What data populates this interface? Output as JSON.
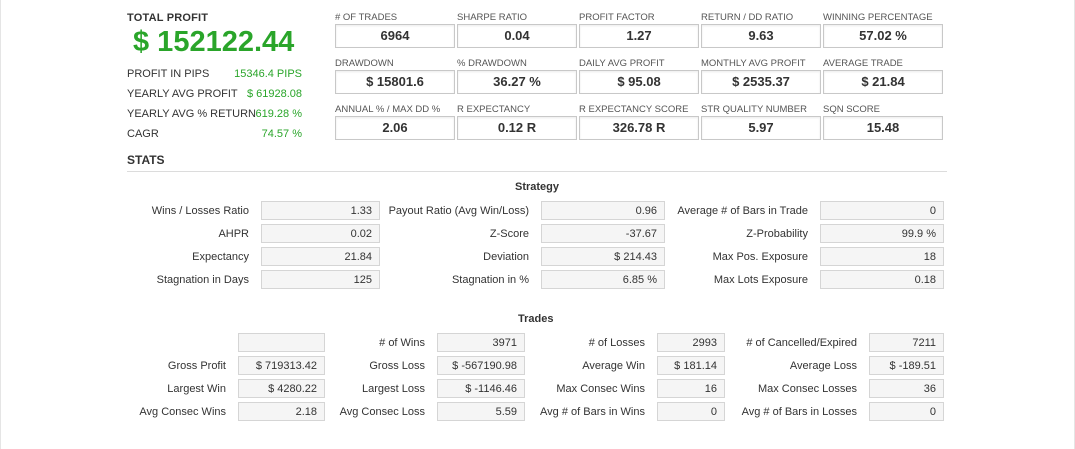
{
  "summary": {
    "total_profit_label": "TOTAL PROFIT",
    "total_profit_value": "$ 152122.44",
    "rows": [
      {
        "label": "PROFIT IN PIPS",
        "value": "15346.4 PIPS"
      },
      {
        "label": "YEARLY AVG PROFIT",
        "value": "$ 61928.08"
      },
      {
        "label": "YEARLY AVG % RETURN",
        "value": "619.28 %"
      },
      {
        "label": "CAGR",
        "value": "74.57 %"
      }
    ]
  },
  "metrics": [
    [
      {
        "label": "# OF TRADES",
        "value": "6964"
      },
      {
        "label": "SHARPE RATIO",
        "value": "0.04"
      },
      {
        "label": "PROFIT FACTOR",
        "value": "1.27"
      },
      {
        "label": "RETURN / DD RATIO",
        "value": "9.63"
      },
      {
        "label": "WINNING PERCENTAGE",
        "value": "57.02 %"
      }
    ],
    [
      {
        "label": "DRAWDOWN",
        "value": "$ 15801.6"
      },
      {
        "label": "% DRAWDOWN",
        "value": "36.27 %"
      },
      {
        "label": "DAILY AVG PROFIT",
        "value": "$ 95.08"
      },
      {
        "label": "MONTHLY AVG PROFIT",
        "value": "$ 2535.37"
      },
      {
        "label": "AVERAGE TRADE",
        "value": "$ 21.84"
      }
    ],
    [
      {
        "label": "ANNUAL % / MAX DD %",
        "value": "2.06"
      },
      {
        "label": "R EXPECTANCY",
        "value": "0.12 R"
      },
      {
        "label": "R EXPECTANCY SCORE",
        "value": "326.78 R"
      },
      {
        "label": "STR QUALITY NUMBER",
        "value": "5.97"
      },
      {
        "label": "SQN SCORE",
        "value": "15.48"
      }
    ]
  ],
  "stats_title": "STATS",
  "strategy": {
    "title": "Strategy",
    "rows": [
      [
        {
          "label": "Wins / Losses Ratio",
          "value": "1.33"
        },
        {
          "label": "Payout Ratio (Avg Win/Loss)",
          "value": "0.96"
        },
        {
          "label": "Average # of Bars in Trade",
          "value": "0"
        }
      ],
      [
        {
          "label": "AHPR",
          "value": "0.02"
        },
        {
          "label": "Z-Score",
          "value": "-37.67"
        },
        {
          "label": "Z-Probability",
          "value": "99.9 %"
        }
      ],
      [
        {
          "label": "Expectancy",
          "value": "21.84"
        },
        {
          "label": "Deviation",
          "value": "$ 214.43"
        },
        {
          "label": "Max Pos. Exposure",
          "value": "18"
        }
      ],
      [
        {
          "label": "Stagnation in Days",
          "value": "125"
        },
        {
          "label": "Stagnation in %",
          "value": "6.85 %"
        },
        {
          "label": "Max Lots Exposure",
          "value": "0.18"
        }
      ]
    ]
  },
  "trades": {
    "title": "Trades",
    "rows": [
      [
        {
          "label": "",
          "value": ""
        },
        {
          "label": "# of Wins",
          "value": "3971"
        },
        {
          "label": "# of Losses",
          "value": "2993"
        },
        {
          "label": "# of Cancelled/Expired",
          "value": "7211"
        }
      ],
      [
        {
          "label": "Gross Profit",
          "value": "$ 719313.42"
        },
        {
          "label": "Gross Loss",
          "value": "$ -567190.98"
        },
        {
          "label": "Average Win",
          "value": "$ 181.14"
        },
        {
          "label": "Average Loss",
          "value": "$ -189.51"
        }
      ],
      [
        {
          "label": "Largest Win",
          "value": "$ 4280.22"
        },
        {
          "label": "Largest Loss",
          "value": "$ -1146.46"
        },
        {
          "label": "Max Consec Wins",
          "value": "16"
        },
        {
          "label": "Max Consec Losses",
          "value": "36"
        }
      ],
      [
        {
          "label": "Avg Consec Wins",
          "value": "2.18"
        },
        {
          "label": "Avg Consec Loss",
          "value": "5.59"
        },
        {
          "label": "Avg # of Bars in Wins",
          "value": "0"
        },
        {
          "label": "Avg # of Bars in Losses",
          "value": "0"
        }
      ]
    ]
  }
}
